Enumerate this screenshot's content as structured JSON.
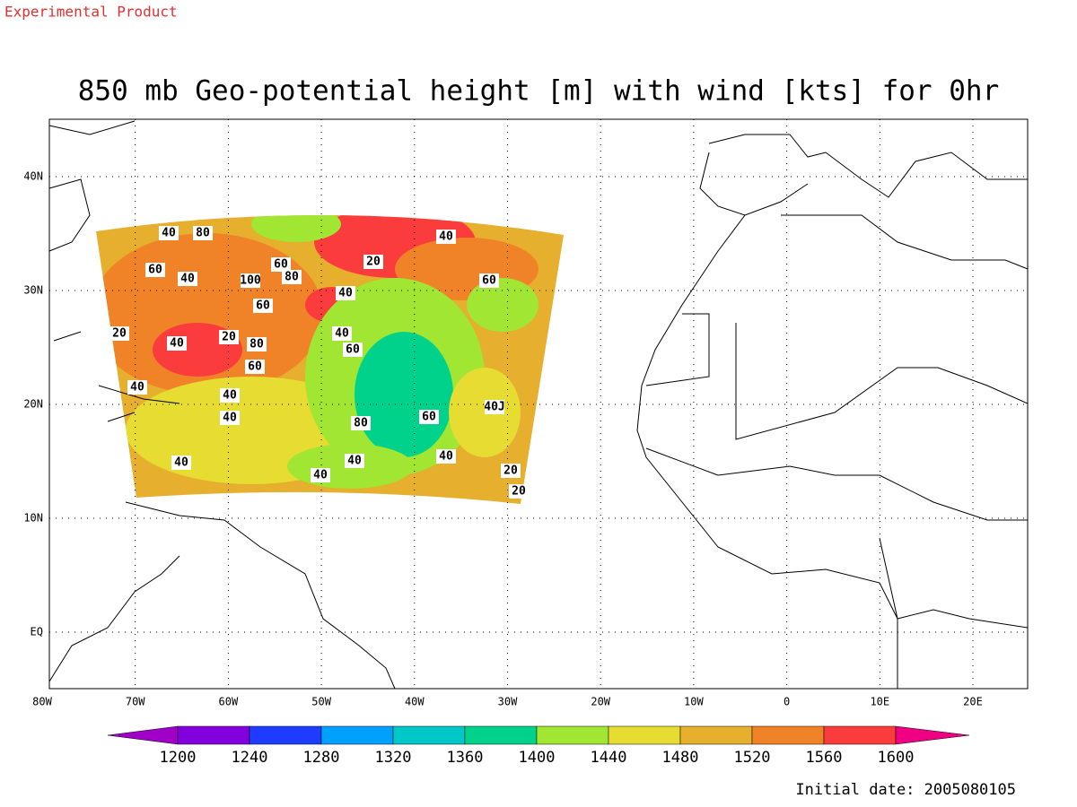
{
  "header": {
    "note": "Experimental Product",
    "title": "850 mb Geo-potential height [m] with wind [kts] for 0hr",
    "initial_date": "Initial date: 2005080105"
  },
  "map": {
    "lon_labels": [
      "80W",
      "70W",
      "60W",
      "50W",
      "40W",
      "30W",
      "20W",
      "10W",
      "0",
      "10E",
      "20E"
    ],
    "lat_labels": [
      "40N",
      "30N",
      "20N",
      "10N",
      "EQ"
    ],
    "contour_labels": [
      "40",
      "80",
      "40",
      "20",
      "60",
      "40",
      "100",
      "60",
      "80",
      "60",
      "40",
      "60",
      "20",
      "40",
      "20",
      "80",
      "40",
      "60",
      "60",
      "40",
      "40",
      "40",
      "40J",
      "80",
      "60",
      "40",
      "40",
      "40",
      "40",
      "20",
      "20"
    ]
  },
  "colorbar": {
    "levels": [
      1200,
      1240,
      1280,
      1320,
      1360,
      1400,
      1440,
      1480,
      1520,
      1560,
      1600
    ],
    "colors": [
      "#a000c8",
      "#8200dc",
      "#1e3cff",
      "#00a0ff",
      "#00c8c8",
      "#00d28c",
      "#a0e632",
      "#e6dc32",
      "#e6af2d",
      "#f08228",
      "#fa3c3c",
      "#f00082"
    ]
  }
}
